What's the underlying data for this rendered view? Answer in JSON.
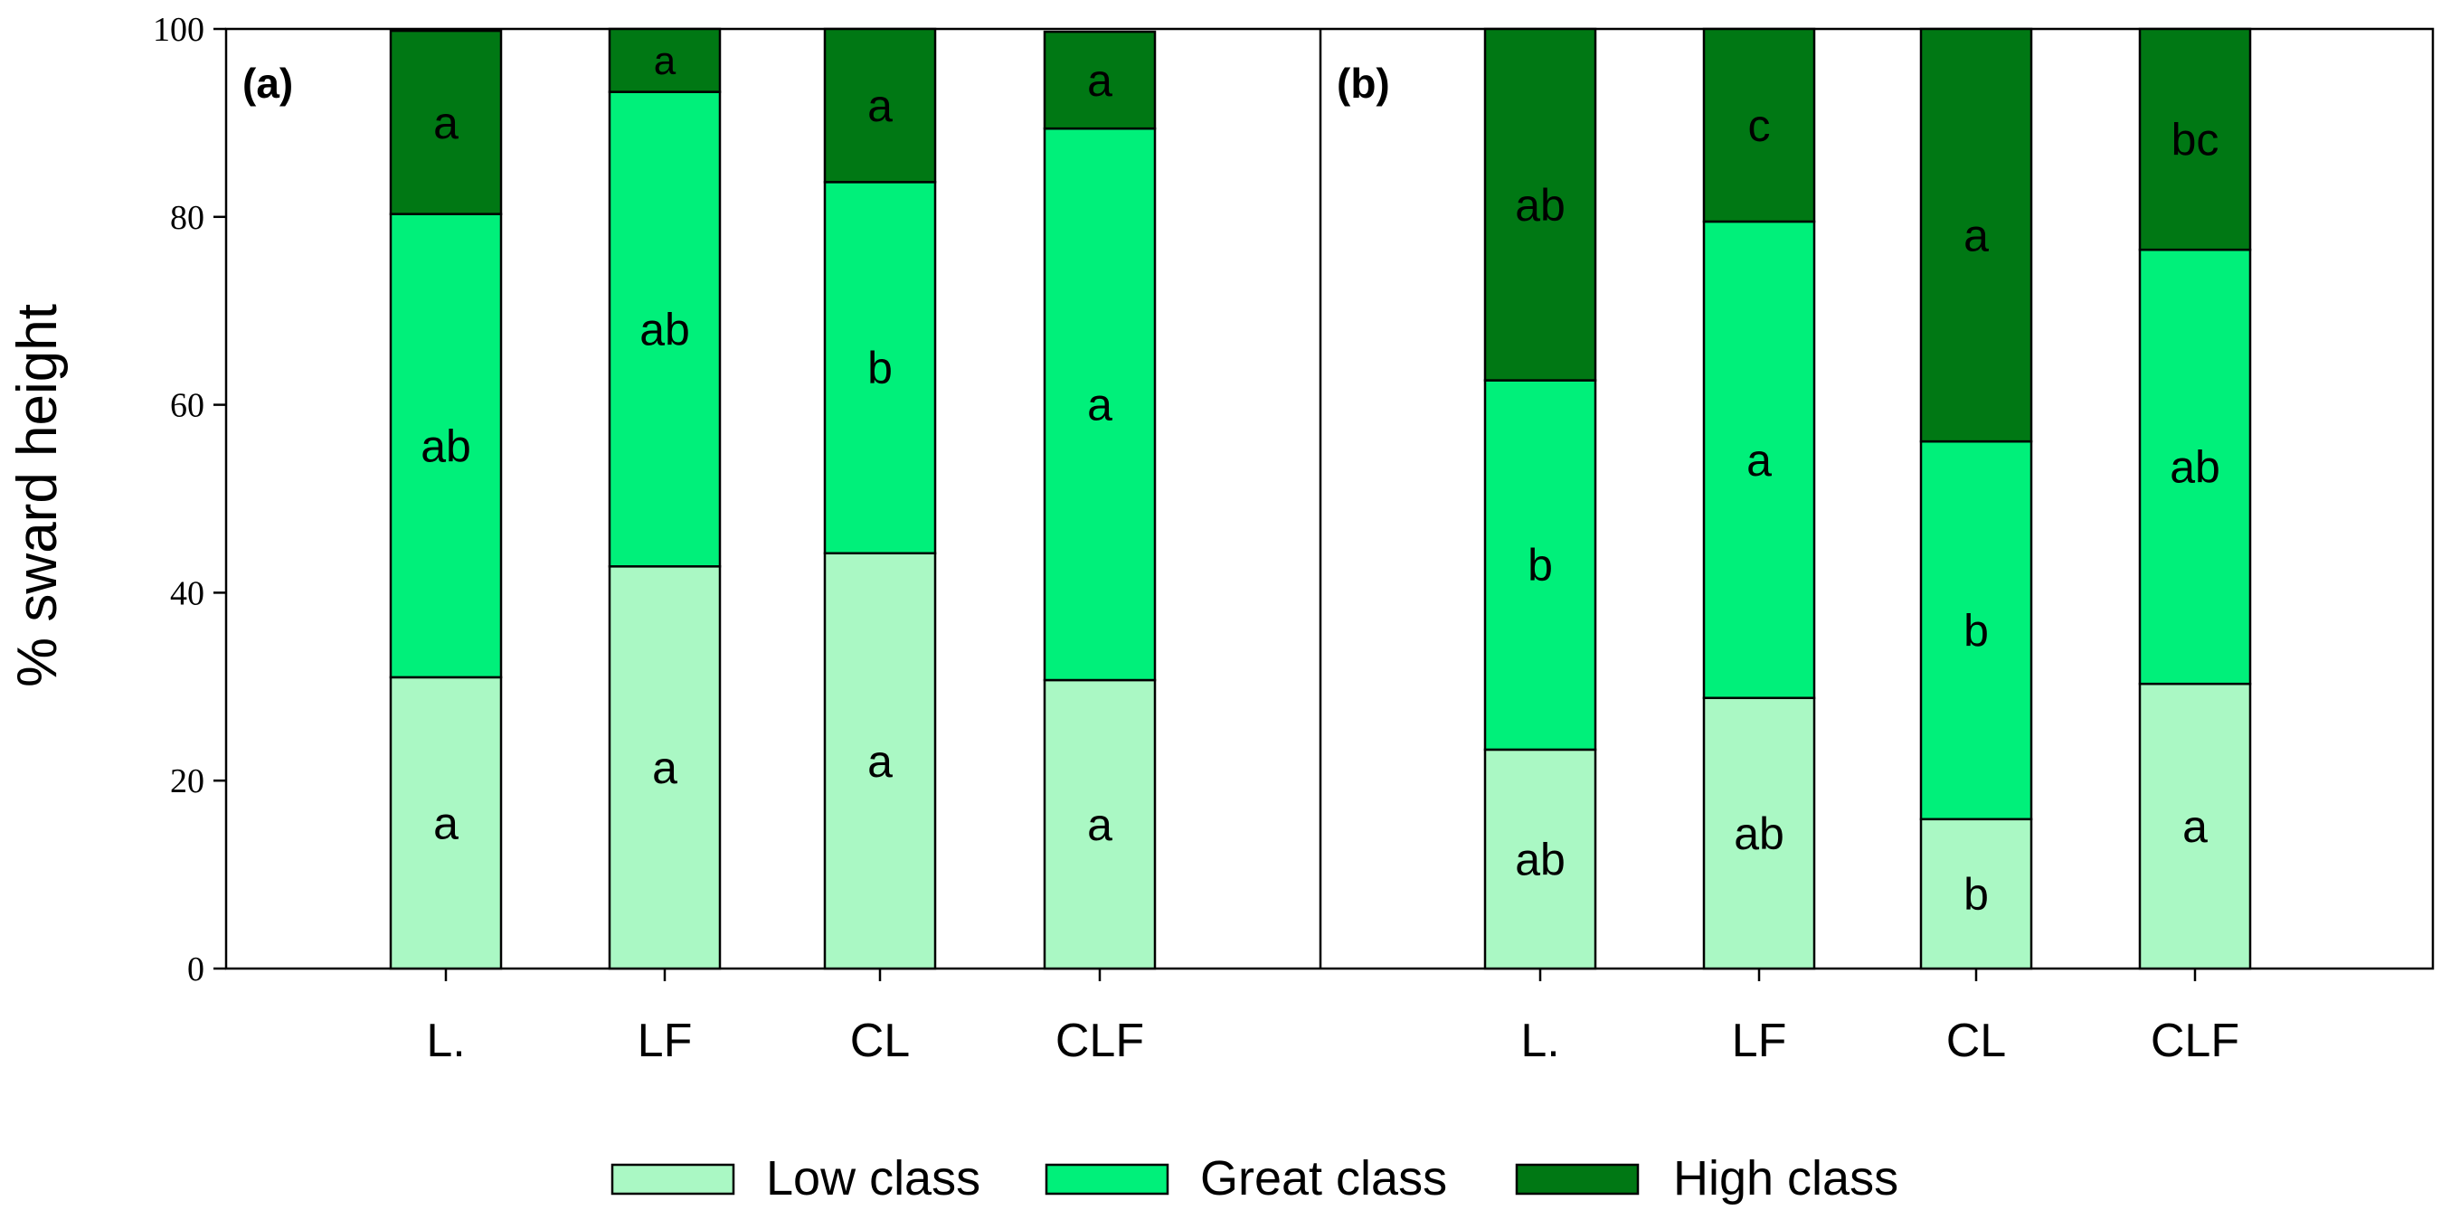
{
  "chart_data": {
    "type": "bar",
    "stacked": true,
    "ylabel": "% sward height",
    "ylim": [
      0,
      100
    ],
    "yticks": [
      0,
      20,
      40,
      60,
      80,
      100
    ],
    "categories": [
      "L.",
      "LF",
      "CL",
      "CLF"
    ],
    "legend": {
      "placement": "bottom-center",
      "items": [
        {
          "name": "Low class",
          "color": "#aaf8c4"
        },
        {
          "name": "Great class",
          "color": "#00f07a"
        },
        {
          "name": "High class",
          "color": "#007814"
        }
      ]
    },
    "panels": [
      {
        "label": "(a)",
        "series": [
          {
            "name": "Low class",
            "values": [
              31,
              42.8,
              44.2,
              30.7
            ],
            "letters": [
              "a",
              "a",
              "a",
              "a"
            ]
          },
          {
            "name": "Great class",
            "values": [
              49.3,
              50.5,
              39.5,
              58.7
            ],
            "letters": [
              "ab",
              "ab",
              "b",
              "a"
            ]
          },
          {
            "name": "High class",
            "values": [
              19.5,
              6.7,
              16.3,
              10.3
            ],
            "letters": [
              "a",
              "a",
              "a",
              "a"
            ]
          }
        ]
      },
      {
        "label": "(b)",
        "series": [
          {
            "name": "Low class",
            "values": [
              23.3,
              28.8,
              15.9,
              30.3
            ],
            "letters": [
              "ab",
              "ab",
              "b",
              "a"
            ]
          },
          {
            "name": "Great class",
            "values": [
              39.3,
              50.7,
              40.2,
              46.2
            ],
            "letters": [
              "b",
              "a",
              "b",
              "ab"
            ]
          },
          {
            "name": "High class",
            "values": [
              37.4,
              20.5,
              43.9,
              23.5
            ],
            "letters": [
              "ab",
              "c",
              "a",
              "bc"
            ]
          }
        ]
      }
    ]
  }
}
